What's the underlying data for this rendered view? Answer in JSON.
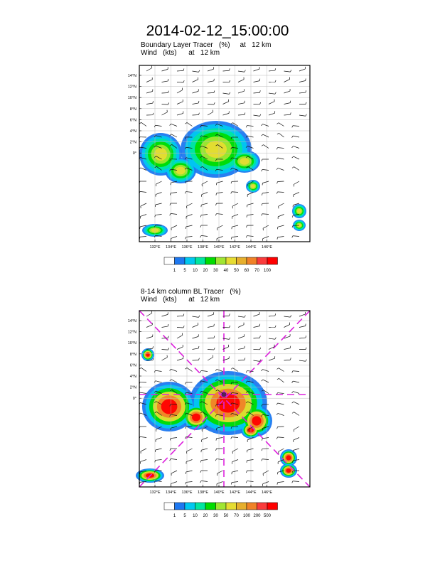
{
  "title": "2014-02-12_15:00:00",
  "panels": [
    {
      "subtitle_line1": "Boundary Layer Tracer   (%)     at   12 km",
      "subtitle_line2": "Wind   (kts)      at   12 km",
      "lat_labels": [
        "14°N",
        "12°N",
        "10°N",
        "8°N",
        "6°N",
        "4°N",
        "2°N",
        "0°"
      ],
      "lon_labels": [
        "132°E",
        "134°E",
        "136°E",
        "138°E",
        "140°E",
        "142°E",
        "144°E",
        "146°E"
      ],
      "colorbar_labels": [
        "1",
        "5",
        "10",
        "20",
        "30",
        "40",
        "50",
        "60",
        "70",
        "100"
      ],
      "colorbar_colors": [
        "#ffffff",
        "#1e78f0",
        "#00c8f0",
        "#00e6a0",
        "#00dc00",
        "#a0e632",
        "#e6dc32",
        "#e6af2d",
        "#f08228",
        "#fa3c3c",
        "#ff0000"
      ],
      "cross_lines": false
    },
    {
      "subtitle_line1": "8-14 km column BL Tracer   (%)",
      "subtitle_line2": "Wind   (kts)      at   12 km",
      "lat_labels": [
        "14°N",
        "12°N",
        "10°N",
        "8°N",
        "6°N",
        "4°N",
        "2°N",
        "0°"
      ],
      "lon_labels": [
        "132°E",
        "134°E",
        "136°E",
        "138°E",
        "140°E",
        "142°E",
        "144°E",
        "146°E"
      ],
      "colorbar_labels": [
        "1",
        "5",
        "10",
        "20",
        "30",
        "50",
        "70",
        "100",
        "200",
        "500"
      ],
      "colorbar_colors": [
        "#ffffff",
        "#1e78f0",
        "#00c8f0",
        "#00e6a0",
        "#00dc00",
        "#a0e632",
        "#e6dc32",
        "#e6af2d",
        "#f08228",
        "#fa3c3c",
        "#ff0000"
      ],
      "cross_lines": true,
      "cross_line_color": "#dd22dd"
    }
  ]
}
